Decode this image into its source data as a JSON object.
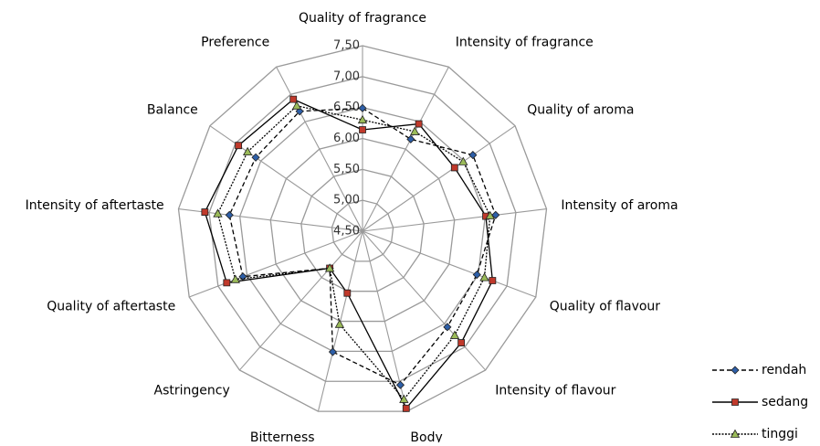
{
  "chart_data": {
    "type": "radar",
    "categories": [
      "Quality of fragrance",
      "Intensity of fragrance",
      "Quality of aroma",
      "Intensity of aroma",
      "Quality of flavour",
      "Intensity of flavour",
      "Body",
      "Bitterness",
      "Astringency",
      "Quality of aftertaste",
      "Intensity of aftertaste",
      "Balance",
      "Preference"
    ],
    "ylim": [
      4.5,
      7.5
    ],
    "yticks": [
      {
        "value": 4.5,
        "label": "4,50"
      },
      {
        "value": 5.0,
        "label": "5,00"
      },
      {
        "value": 5.5,
        "label": "5,50"
      },
      {
        "value": 6.0,
        "label": "6,00"
      },
      {
        "value": 6.5,
        "label": "6,50"
      },
      {
        "value": 7.0,
        "label": "7,00"
      },
      {
        "value": 7.5,
        "label": "7,50"
      }
    ],
    "grid": true,
    "legend": "right",
    "line_color": "#000000",
    "series": [
      {
        "name": "rendah",
        "color": "#2e5fa8",
        "marker": "diamond",
        "dash": "dashed",
        "values": [
          6.49,
          6.18,
          6.67,
          6.67,
          6.48,
          6.57,
          7.06,
          6.51,
          5.3,
          6.57,
          6.67,
          6.6,
          6.69
        ]
      },
      {
        "name": "sedang",
        "color": "#c0392b",
        "marker": "square",
        "dash": "solid",
        "values": [
          6.14,
          6.46,
          6.31,
          6.51,
          6.75,
          6.91,
          7.45,
          5.53,
          5.3,
          6.85,
          7.07,
          6.94,
          6.91
        ]
      },
      {
        "name": "tinggi",
        "color": "#9bbb59",
        "marker": "triangle",
        "dash": "dotted",
        "values": [
          6.3,
          6.32,
          6.48,
          6.58,
          6.61,
          6.75,
          7.3,
          6.05,
          5.3,
          6.7,
          6.86,
          6.76,
          6.79
        ]
      }
    ]
  }
}
